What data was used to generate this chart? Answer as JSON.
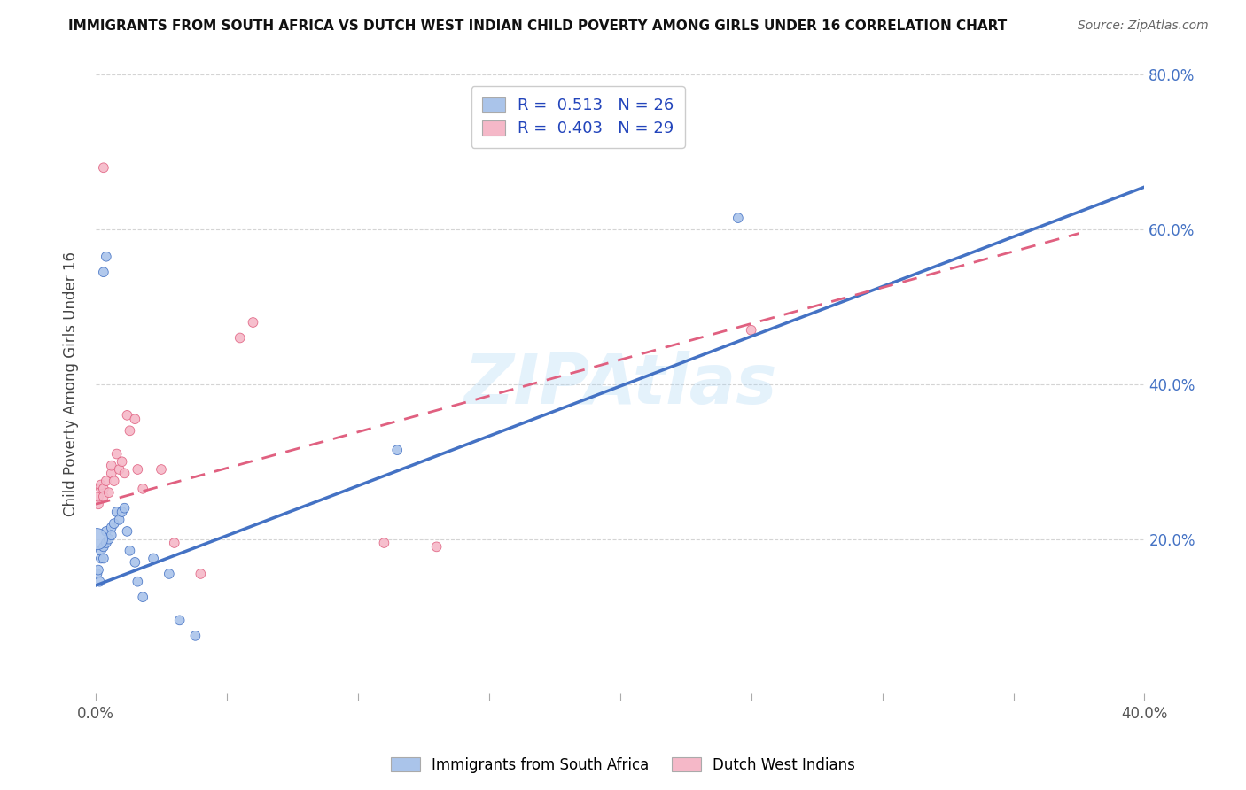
{
  "title": "IMMIGRANTS FROM SOUTH AFRICA VS DUTCH WEST INDIAN CHILD POVERTY AMONG GIRLS UNDER 16 CORRELATION CHART",
  "source": "Source: ZipAtlas.com",
  "ylabel": "Child Poverty Among Girls Under 16",
  "xlim": [
    0.0,
    0.4
  ],
  "ylim": [
    0.0,
    0.8
  ],
  "xtick_labels": [
    "0.0%",
    "",
    "",
    "",
    "",
    "",
    "",
    "",
    "40.0%"
  ],
  "xtick_vals": [
    0.0,
    0.05,
    0.1,
    0.15,
    0.2,
    0.25,
    0.3,
    0.35,
    0.4
  ],
  "ytick_labels": [
    "20.0%",
    "40.0%",
    "60.0%",
    "80.0%"
  ],
  "ytick_vals": [
    0.2,
    0.4,
    0.6,
    0.8
  ],
  "watermark": "ZIPAtlas",
  "color_blue": "#aac4ea",
  "color_pink": "#f5b8c8",
  "color_blue_line": "#4472c4",
  "color_pink_line": "#e06080",
  "blue_scatter": [
    [
      0.0005,
      0.155
    ],
    [
      0.001,
      0.16
    ],
    [
      0.0015,
      0.145
    ],
    [
      0.002,
      0.175
    ],
    [
      0.002,
      0.185
    ],
    [
      0.003,
      0.19
    ],
    [
      0.003,
      0.175
    ],
    [
      0.004,
      0.21
    ],
    [
      0.004,
      0.195
    ],
    [
      0.005,
      0.2
    ],
    [
      0.006,
      0.215
    ],
    [
      0.006,
      0.205
    ],
    [
      0.007,
      0.22
    ],
    [
      0.008,
      0.235
    ],
    [
      0.009,
      0.225
    ],
    [
      0.01,
      0.235
    ],
    [
      0.011,
      0.24
    ],
    [
      0.012,
      0.21
    ],
    [
      0.013,
      0.185
    ],
    [
      0.015,
      0.17
    ],
    [
      0.016,
      0.145
    ],
    [
      0.018,
      0.125
    ],
    [
      0.022,
      0.175
    ],
    [
      0.028,
      0.155
    ],
    [
      0.032,
      0.095
    ],
    [
      0.038,
      0.075
    ],
    [
      0.003,
      0.545
    ],
    [
      0.004,
      0.565
    ],
    [
      0.115,
      0.315
    ],
    [
      0.245,
      0.615
    ],
    [
      0.0005,
      0.2
    ]
  ],
  "blue_sizes": [
    60,
    60,
    60,
    60,
    60,
    60,
    60,
    60,
    60,
    60,
    60,
    60,
    60,
    60,
    60,
    60,
    60,
    60,
    60,
    60,
    60,
    60,
    60,
    60,
    60,
    60,
    60,
    60,
    60,
    60,
    300
  ],
  "pink_scatter": [
    [
      0.001,
      0.245
    ],
    [
      0.001,
      0.255
    ],
    [
      0.002,
      0.265
    ],
    [
      0.002,
      0.27
    ],
    [
      0.003,
      0.265
    ],
    [
      0.003,
      0.255
    ],
    [
      0.004,
      0.275
    ],
    [
      0.005,
      0.26
    ],
    [
      0.006,
      0.285
    ],
    [
      0.006,
      0.295
    ],
    [
      0.007,
      0.275
    ],
    [
      0.008,
      0.31
    ],
    [
      0.009,
      0.29
    ],
    [
      0.01,
      0.3
    ],
    [
      0.011,
      0.285
    ],
    [
      0.012,
      0.36
    ],
    [
      0.013,
      0.34
    ],
    [
      0.015,
      0.355
    ],
    [
      0.016,
      0.29
    ],
    [
      0.018,
      0.265
    ],
    [
      0.025,
      0.29
    ],
    [
      0.03,
      0.195
    ],
    [
      0.04,
      0.155
    ],
    [
      0.055,
      0.46
    ],
    [
      0.06,
      0.48
    ],
    [
      0.11,
      0.195
    ],
    [
      0.25,
      0.47
    ],
    [
      0.003,
      0.68
    ],
    [
      0.13,
      0.19
    ]
  ],
  "pink_sizes": [
    60,
    60,
    60,
    60,
    60,
    60,
    60,
    60,
    60,
    60,
    60,
    60,
    60,
    60,
    60,
    60,
    60,
    60,
    60,
    60,
    60,
    60,
    60,
    60,
    60,
    60,
    60,
    60,
    60
  ],
  "blue_line_x": [
    0.0,
    0.4
  ],
  "blue_line_y": [
    0.14,
    0.655
  ],
  "pink_line_x": [
    0.0,
    0.375
  ],
  "pink_line_y": [
    0.245,
    0.595
  ],
  "background_color": "#ffffff",
  "grid_color": "#d0d0d0"
}
